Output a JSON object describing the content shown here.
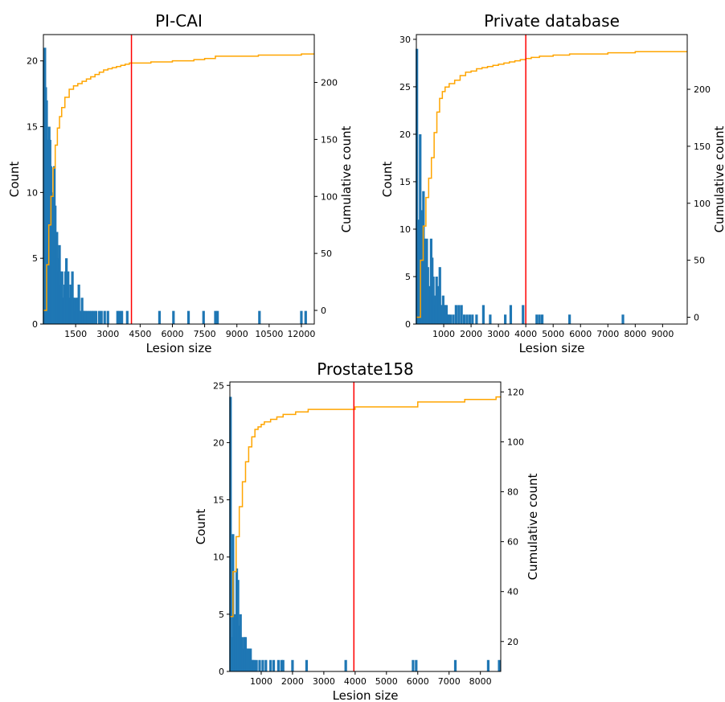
{
  "chart_data": [
    {
      "type": "bar",
      "title": "PI-CAI",
      "xlabel": "Lesion size",
      "ylabel": "Count",
      "y2label": "Cumulative count",
      "xlim": [
        0,
        12600
      ],
      "ylim": [
        0,
        22
      ],
      "y2lim": [
        -12,
        242
      ],
      "xticks": [
        1500,
        3000,
        4500,
        6000,
        7500,
        9000,
        10500,
        12000
      ],
      "yticks": [
        0,
        5,
        10,
        15,
        20
      ],
      "y2ticks": [
        0,
        50,
        100,
        150,
        200
      ],
      "threshold_x": 4096,
      "colors": {
        "bars": "#1f77b4",
        "cumulative": "#ffa500",
        "threshold": "#ff0000"
      },
      "histogram": {
        "x": [
          30,
          70,
          110,
          150,
          190,
          230,
          270,
          310,
          350,
          390,
          430,
          470,
          510,
          550,
          590,
          630,
          670,
          710,
          750,
          790,
          830,
          870,
          910,
          950,
          990,
          1030,
          1070,
          1110,
          1150,
          1190,
          1230,
          1270,
          1310,
          1350,
          1400,
          1450,
          1500,
          1550,
          1600,
          1650,
          1700,
          1750,
          1800,
          1850,
          1900,
          1950,
          2050,
          2150,
          2250,
          2350,
          2450,
          2600,
          2700,
          2850,
          3000,
          3450,
          3550,
          3650,
          3900,
          5400,
          6050,
          6750,
          7450,
          8000,
          8100,
          10050,
          12000,
          12200
        ],
        "values": [
          20,
          21,
          18,
          17,
          14,
          14,
          15,
          14,
          12,
          10,
          10,
          9,
          12,
          9,
          5,
          7,
          5,
          4,
          6,
          4,
          3,
          4,
          2,
          2,
          3,
          4,
          5,
          2,
          4,
          2,
          2,
          3,
          2,
          4,
          2,
          2,
          1,
          2,
          2,
          3,
          1,
          1,
          2,
          1,
          1,
          1,
          1,
          1,
          1,
          1,
          1,
          1,
          1,
          1,
          1,
          1,
          1,
          1,
          1,
          1,
          1,
          1,
          1,
          1,
          1,
          1,
          1,
          1
        ]
      },
      "cumulative": {
        "x": [
          0,
          150,
          250,
          350,
          450,
          550,
          650,
          750,
          850,
          1000,
          1200,
          1400,
          1600,
          1800,
          2000,
          2200,
          2400,
          2600,
          2800,
          3000,
          3200,
          3400,
          3600,
          3800,
          4000,
          4200,
          5000,
          6000,
          7000,
          7500,
          8000,
          9000,
          10000,
          11000,
          12000,
          12600
        ],
        "y": [
          0,
          40,
          75,
          100,
          125,
          145,
          160,
          170,
          178,
          187,
          194,
          197,
          199,
          201,
          203,
          205,
          207,
          209,
          211,
          212,
          213,
          214,
          215,
          216,
          217,
          217,
          218,
          219,
          220,
          221,
          223,
          223,
          224,
          224,
          225,
          225
        ]
      }
    },
    {
      "type": "bar",
      "title": "Private database",
      "xlabel": "Lesion size",
      "ylabel": "Count",
      "y2label": "Cumulative count",
      "xlim": [
        0,
        9900
      ],
      "ylim": [
        0,
        30.5
      ],
      "y2lim": [
        -6,
        248
      ],
      "xticks": [
        1000,
        2000,
        3000,
        4000,
        5000,
        6000,
        7000,
        8000,
        9000
      ],
      "yticks": [
        0,
        5,
        10,
        15,
        20,
        25,
        30
      ],
      "y2ticks": [
        0,
        50,
        100,
        150,
        200
      ],
      "threshold_x": 4000,
      "colors": {
        "bars": "#1f77b4",
        "cumulative": "#ffa500",
        "threshold": "#ff0000"
      },
      "histogram": {
        "x": [
          20,
          60,
          100,
          140,
          180,
          220,
          260,
          300,
          340,
          380,
          420,
          460,
          500,
          540,
          580,
          620,
          660,
          700,
          740,
          780,
          820,
          860,
          900,
          940,
          980,
          1020,
          1060,
          1100,
          1140,
          1180,
          1250,
          1350,
          1450,
          1550,
          1650,
          1750,
          1850,
          1950,
          2050,
          2200,
          2450,
          2700,
          3250,
          3450,
          3900,
          4400,
          4500,
          4600,
          5600,
          7550
        ],
        "values": [
          29,
          11,
          8,
          20,
          10,
          12,
          14,
          9,
          7,
          9,
          6,
          4,
          3,
          9,
          7,
          5,
          3,
          2,
          5,
          3,
          4,
          6,
          2,
          2,
          3,
          2,
          2,
          2,
          1,
          1,
          1,
          1,
          2,
          2,
          2,
          1,
          1,
          1,
          1,
          1,
          2,
          1,
          1,
          2,
          2,
          1,
          1,
          1,
          1,
          1
        ]
      },
      "cumulative": {
        "x": [
          0,
          150,
          250,
          350,
          450,
          550,
          650,
          750,
          850,
          950,
          1050,
          1200,
          1400,
          1600,
          1800,
          2000,
          2200,
          2400,
          2600,
          2800,
          3000,
          3200,
          3400,
          3600,
          3800,
          4000,
          4200,
          4500,
          5000,
          5600,
          6000,
          7000,
          7500,
          8000,
          9000,
          9900
        ],
        "y": [
          0,
          50,
          80,
          105,
          122,
          140,
          162,
          180,
          192,
          198,
          202,
          205,
          208,
          212,
          215,
          216,
          218,
          219,
          220,
          221,
          222,
          223,
          224,
          225,
          226,
          227,
          228,
          229,
          230,
          231,
          231,
          232,
          232,
          233,
          233,
          233
        ]
      }
    },
    {
      "type": "bar",
      "title": "Prostate158",
      "xlabel": "Lesion size",
      "ylabel": "Count",
      "y2label": "Cumulative count",
      "xlim": [
        0,
        8650
      ],
      "ylim": [
        0,
        25.3
      ],
      "y2lim": [
        8,
        124
      ],
      "xticks": [
        1000,
        2000,
        3000,
        4000,
        5000,
        6000,
        7000,
        8000
      ],
      "yticks": [
        0,
        5,
        10,
        15,
        20,
        25
      ],
      "y2ticks": [
        20,
        40,
        60,
        80,
        100,
        120
      ],
      "threshold_x": 3960,
      "colors": {
        "bars": "#1f77b4",
        "cumulative": "#ffa500",
        "threshold": "#ff0000"
      },
      "histogram": {
        "x": [
          20,
          60,
          100,
          140,
          180,
          220,
          260,
          300,
          340,
          380,
          420,
          460,
          500,
          540,
          580,
          620,
          660,
          700,
          740,
          780,
          850,
          950,
          1050,
          1150,
          1300,
          1400,
          1550,
          1650,
          1700,
          2000,
          2450,
          3700,
          5850,
          5950,
          7200,
          8250,
          8600
        ],
        "values": [
          24,
          3,
          12,
          3,
          5,
          9,
          8,
          4,
          5,
          3,
          2,
          3,
          3,
          2,
          2,
          2,
          2,
          1,
          1,
          1,
          1,
          1,
          1,
          1,
          1,
          1,
          1,
          1,
          1,
          1,
          1,
          1,
          1,
          1,
          1,
          1,
          1
        ]
      },
      "cumulative": {
        "x": [
          0,
          100,
          200,
          300,
          400,
          500,
          600,
          700,
          800,
          900,
          1000,
          1100,
          1300,
          1500,
          1700,
          1900,
          2100,
          2300,
          2500,
          2700,
          3000,
          3300,
          3600,
          4000,
          4500,
          5000,
          5800,
          6000,
          6500,
          7000,
          7500,
          8000,
          8500,
          8650
        ],
        "y": [
          30,
          48,
          62,
          74,
          84,
          92,
          98,
          102,
          105,
          106,
          107,
          108,
          109,
          110,
          111,
          111,
          112,
          112,
          113,
          113,
          113,
          113,
          113,
          114,
          114,
          114,
          114,
          116,
          116,
          116,
          117,
          117,
          118,
          118
        ]
      }
    }
  ]
}
